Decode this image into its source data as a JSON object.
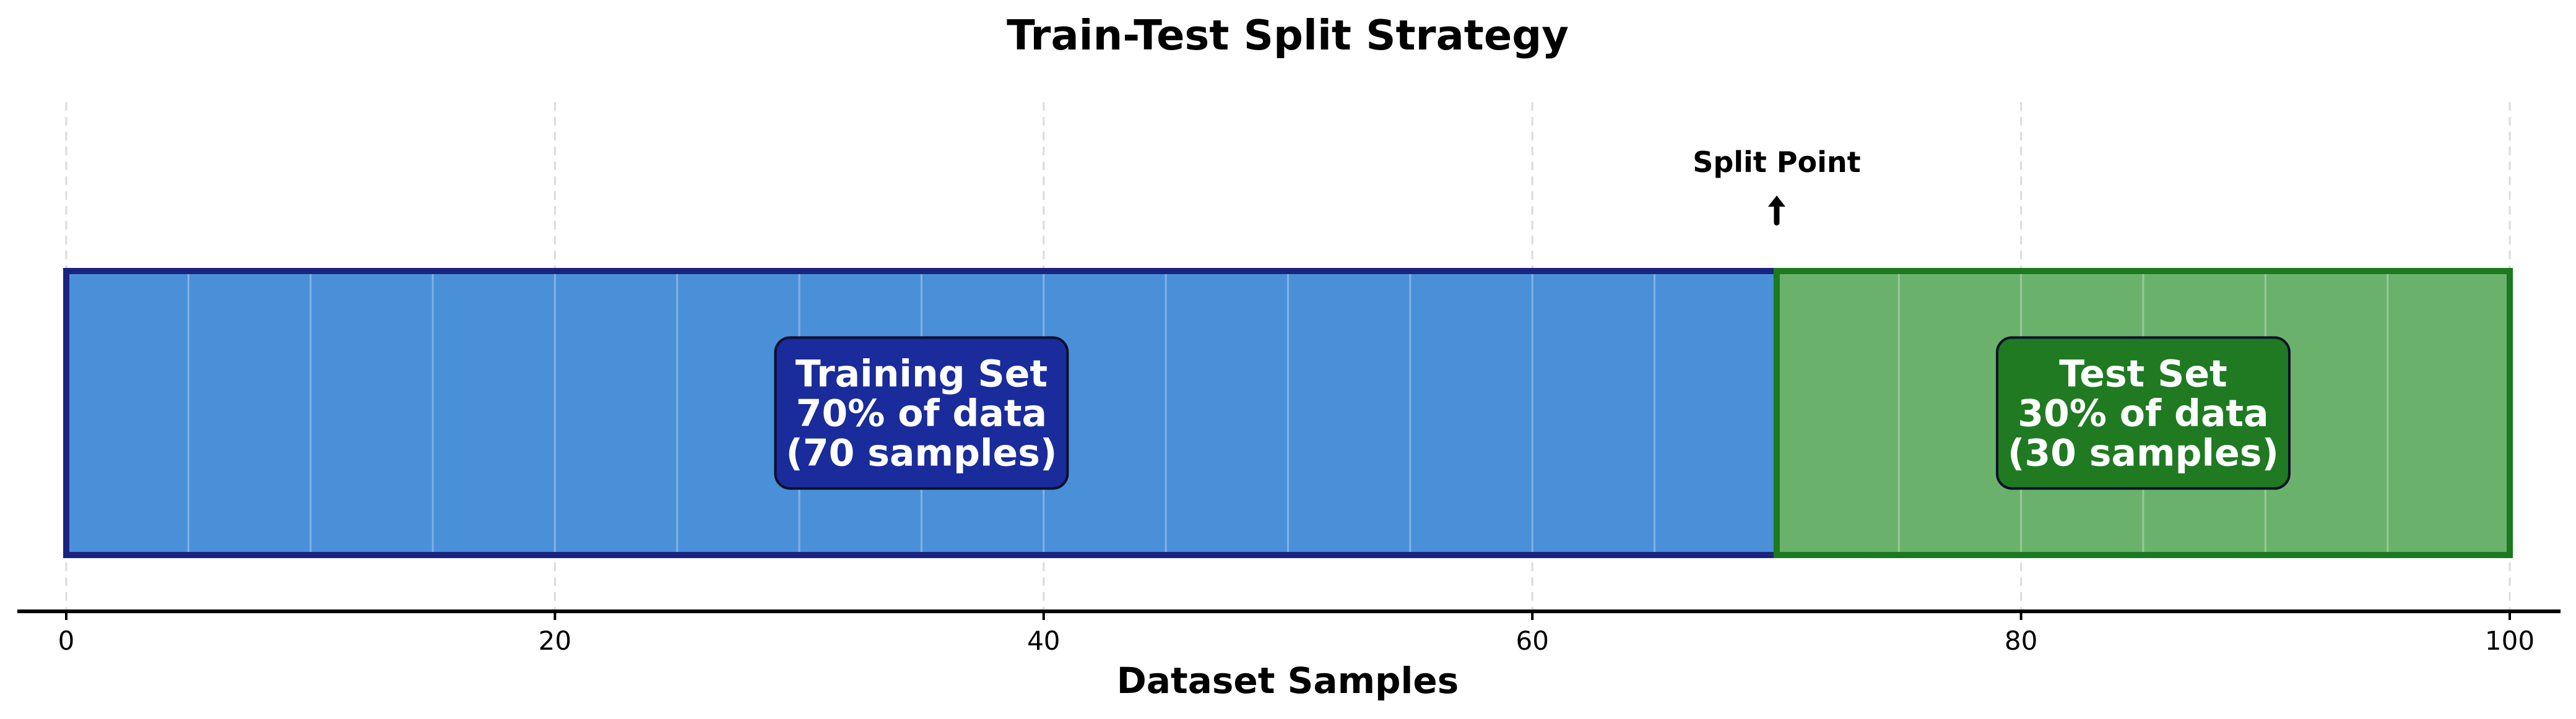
{
  "chart_data": {
    "type": "bar",
    "title": "Train-Test Split Strategy",
    "xlabel": "Dataset Samples",
    "ylabel": "",
    "xlim": [
      0,
      100
    ],
    "xticks": [
      0,
      20,
      40,
      60,
      80,
      100
    ],
    "minor_divisions_step": 5,
    "grid": true,
    "legend": "none",
    "segments": [
      {
        "start": 0,
        "end": 70,
        "fill_color": "#4a90d9",
        "edge_color": "#1a237e",
        "label_box_color": "#1a2b9c",
        "label_lines": [
          "Training Set",
          "70% of data",
          "(70 samples)"
        ]
      },
      {
        "start": 70,
        "end": 100,
        "fill_color": "#6ab26c",
        "edge_color": "#1b7a1f",
        "label_box_color": "#1f7a22",
        "label_lines": [
          "Test Set",
          "30% of data",
          "(30 samples)"
        ]
      }
    ],
    "annotation": {
      "text": "Split Point",
      "x": 70,
      "arrow": "up"
    }
  }
}
